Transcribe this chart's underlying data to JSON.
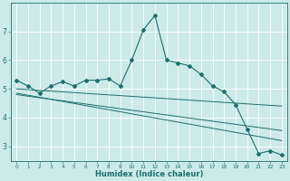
{
  "xlabel": "Humidex (Indice chaleur)",
  "bg_color": "#cceae7",
  "grid_color": "#ffffff",
  "line_color": "#1a7070",
  "x_values": [
    0,
    1,
    2,
    3,
    4,
    5,
    6,
    7,
    8,
    9,
    10,
    11,
    12,
    13,
    14,
    15,
    16,
    17,
    18,
    19,
    20,
    21,
    22,
    23
  ],
  "main_line": [
    5.3,
    5.1,
    4.85,
    5.1,
    5.25,
    5.1,
    5.3,
    5.3,
    5.35,
    5.1,
    6.0,
    7.05,
    7.55,
    6.0,
    5.9,
    5.8,
    5.5,
    5.1,
    4.9,
    4.45,
    3.6,
    2.75,
    2.85,
    2.7
  ],
  "trend_line1": [
    [
      0,
      5.0
    ],
    [
      23,
      4.4
    ]
  ],
  "trend_line2": [
    [
      0,
      4.8
    ],
    [
      23,
      3.55
    ]
  ],
  "trend_line3": [
    [
      0,
      4.85
    ],
    [
      23,
      3.2
    ]
  ],
  "ylim": [
    2.5,
    8.0
  ],
  "yticks": [
    3,
    4,
    5,
    6,
    7
  ],
  "xticks": [
    0,
    1,
    2,
    3,
    4,
    5,
    6,
    7,
    8,
    9,
    10,
    11,
    12,
    13,
    14,
    15,
    16,
    17,
    18,
    19,
    20,
    21,
    22,
    23
  ],
  "xlim": [
    -0.5,
    23.5
  ]
}
